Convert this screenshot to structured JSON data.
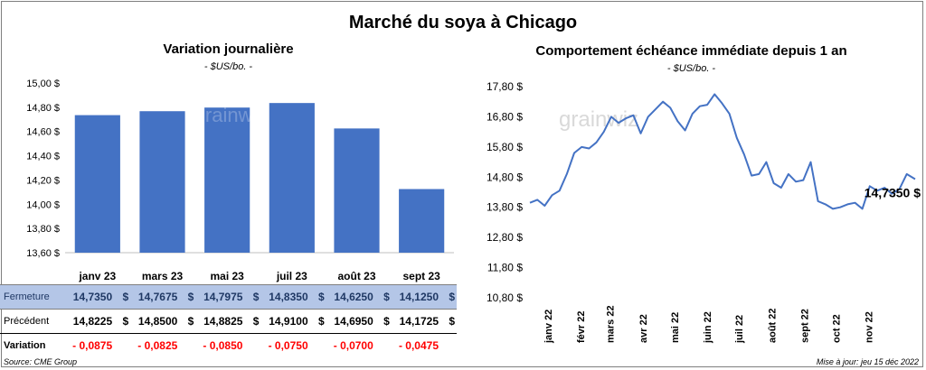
{
  "title": "Marché du soya à Chicago",
  "footer": {
    "source": "Source: CME Group",
    "updated": "Mise à jour: jeu 15 déc 2022"
  },
  "watermark": "grainwiz",
  "colors": {
    "bar": "#4472c4",
    "line": "#4472c4",
    "highlight_row": "#b4c6e7",
    "negative": "#ff0000"
  },
  "chart_data": [
    {
      "type": "bar",
      "title": "Variation journalière",
      "subtitle": "- $US/bo. -",
      "categories": [
        "janv 23",
        "mars 23",
        "mai 23",
        "juil 23",
        "août 23",
        "sept 23"
      ],
      "values": [
        14.735,
        14.7675,
        14.7975,
        14.835,
        14.625,
        14.125
      ],
      "ylim": [
        13.6,
        15.0
      ],
      "yticks": [
        13.6,
        13.8,
        14.0,
        14.2,
        14.4,
        14.6,
        14.8,
        15.0
      ],
      "ytick_labels": [
        "13,60 $",
        "13,80 $",
        "14,00 $",
        "14,20 $",
        "14,40 $",
        "14,60 $",
        "14,80 $",
        "15,00 $"
      ],
      "grid": false
    },
    {
      "type": "line",
      "title": "Comportement échéance immédiate depuis 1 an",
      "subtitle": "- $US/bo. -",
      "x": [
        "2021-12-15",
        "2021-12-22",
        "2021-12-29",
        "2022-01-05",
        "2022-01-12",
        "2022-01-19",
        "2022-01-26",
        "2022-02-02",
        "2022-02-09",
        "2022-02-16",
        "2022-02-23",
        "2022-03-02",
        "2022-03-09",
        "2022-03-16",
        "2022-03-23",
        "2022-03-30",
        "2022-04-06",
        "2022-04-13",
        "2022-04-20",
        "2022-04-27",
        "2022-05-04",
        "2022-05-11",
        "2022-05-18",
        "2022-05-25",
        "2022-06-01",
        "2022-06-08",
        "2022-06-15",
        "2022-06-22",
        "2022-06-29",
        "2022-07-06",
        "2022-07-13",
        "2022-07-20",
        "2022-07-27",
        "2022-08-03",
        "2022-08-10",
        "2022-08-17",
        "2022-08-24",
        "2022-08-31",
        "2022-09-07",
        "2022-09-14",
        "2022-09-21",
        "2022-09-28",
        "2022-10-05",
        "2022-10-12",
        "2022-10-19",
        "2022-10-26",
        "2022-11-02",
        "2022-11-09",
        "2022-11-16",
        "2022-11-23",
        "2022-11-30",
        "2022-12-07",
        "2022-12-15"
      ],
      "y": [
        13.95,
        14.05,
        13.85,
        14.2,
        14.35,
        14.9,
        15.6,
        15.8,
        15.75,
        15.95,
        16.3,
        16.8,
        16.6,
        16.75,
        16.85,
        16.25,
        16.8,
        17.05,
        17.3,
        17.1,
        16.65,
        16.35,
        16.9,
        17.15,
        17.2,
        17.55,
        17.25,
        16.9,
        16.1,
        15.55,
        14.85,
        14.9,
        15.3,
        14.6,
        14.45,
        14.9,
        14.65,
        14.7,
        15.3,
        14.0,
        13.9,
        13.75,
        13.8,
        13.9,
        13.95,
        13.75,
        14.5,
        14.35,
        14.45,
        14.25,
        14.4,
        14.9,
        14.735
      ],
      "ylim": [
        10.8,
        17.8
      ],
      "yticks": [
        10.8,
        11.8,
        12.8,
        13.8,
        14.8,
        15.8,
        16.8,
        17.8
      ],
      "ytick_labels": [
        "10,80 $",
        "11,80 $",
        "12,80 $",
        "13,80 $",
        "14,80 $",
        "15,80 $",
        "16,80 $",
        "17,80 $"
      ],
      "xtick_dates": [
        "2022-01-01",
        "2022-02-01",
        "2022-03-01",
        "2022-04-01",
        "2022-05-01",
        "2022-06-01",
        "2022-07-01",
        "2022-08-01",
        "2022-09-01",
        "2022-10-01",
        "2022-11-01"
      ],
      "xtick_labels": [
        "janv 22",
        "févr 22",
        "mars 22",
        "avr 22",
        "mai 22",
        "juin 22",
        "juil 22",
        "août 22",
        "sept 22",
        "oct 22",
        "nov 22"
      ],
      "last_value_label": "14,7350 $",
      "grid": false
    }
  ],
  "table": {
    "currency": "$",
    "rows": [
      {
        "label": "Fermeture",
        "values": [
          "14,7350",
          "14,7675",
          "14,7975",
          "14,8350",
          "14,6250",
          "14,1250"
        ],
        "show_currency": true
      },
      {
        "label": "Précédent",
        "values": [
          "14,8225",
          "14,8500",
          "14,8825",
          "14,9100",
          "14,6950",
          "14,1725"
        ],
        "show_currency": true
      },
      {
        "label": "Variation",
        "values": [
          "- 0,0875",
          "- 0,0825",
          "- 0,0850",
          "- 0,0750",
          "- 0,0700",
          "- 0,0475"
        ],
        "show_currency": false
      }
    ]
  }
}
